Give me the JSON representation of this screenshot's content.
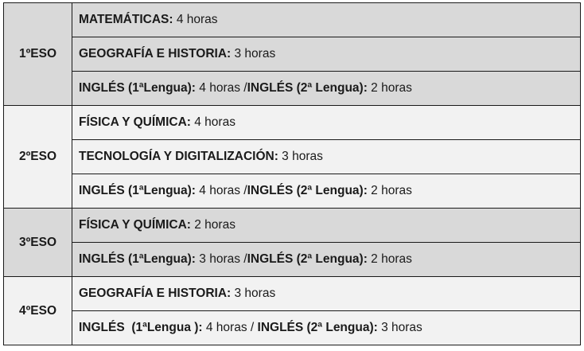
{
  "groups": [
    {
      "level": "1ºESO",
      "rows": [
        [
          {
            "t": "MATEMÁTICAS:",
            "b": true
          },
          {
            "t": " 4 horas",
            "b": false
          }
        ],
        [
          {
            "t": "GEOGRAFÍA E HISTORIA:",
            "b": true
          },
          {
            "t": " 3 horas",
            "b": false
          }
        ],
        [
          {
            "t": "INGLÉS (1ªLengua):",
            "b": true
          },
          {
            "t": " 4 horas /",
            "b": false
          },
          {
            "t": "INGLÉS (2ª Lengua):",
            "b": true
          },
          {
            "t": " 2 horas",
            "b": false
          }
        ]
      ]
    },
    {
      "level": "2ºESO",
      "rows": [
        [
          {
            "t": "FÍSICA Y QUÍMICA:",
            "b": true
          },
          {
            "t": " 4 horas",
            "b": false
          }
        ],
        [
          {
            "t": "TECNOLOGÍA Y DIGITALIZACIÓN:",
            "b": true
          },
          {
            "t": " 3 horas",
            "b": false
          }
        ],
        [
          {
            "t": "INGLÉS (1ªLengua):",
            "b": true
          },
          {
            "t": " 4 horas /",
            "b": false
          },
          {
            "t": "INGLÉS (2ª Lengua):",
            "b": true
          },
          {
            "t": " 2 horas",
            "b": false
          }
        ]
      ]
    },
    {
      "level": "3ºESO",
      "rows": [
        [
          {
            "t": "FÍSICA Y QUÍMICA:",
            "b": true
          },
          {
            "t": " 2 horas",
            "b": false
          }
        ],
        [
          {
            "t": "INGLÉS (1ªLengua):",
            "b": true
          },
          {
            "t": " 3 horas /",
            "b": false
          },
          {
            "t": "INGLÉS (2ª Lengua):",
            "b": true
          },
          {
            "t": " 2 horas",
            "b": false
          }
        ]
      ]
    },
    {
      "level": "4ºESO",
      "rows": [
        [
          {
            "t": "GEOGRAFÍA E HISTORIA:",
            "b": true
          },
          {
            "t": " 3 horas",
            "b": false
          }
        ],
        [
          {
            "t": "INGLÉS  (1ªLengua ):",
            "b": true
          },
          {
            "t": " 4 horas / ",
            "b": false
          },
          {
            "t": "INGLÉS (2ª Lengua):",
            "b": true
          },
          {
            "t": " 3 horas",
            "b": false
          }
        ]
      ]
    }
  ]
}
